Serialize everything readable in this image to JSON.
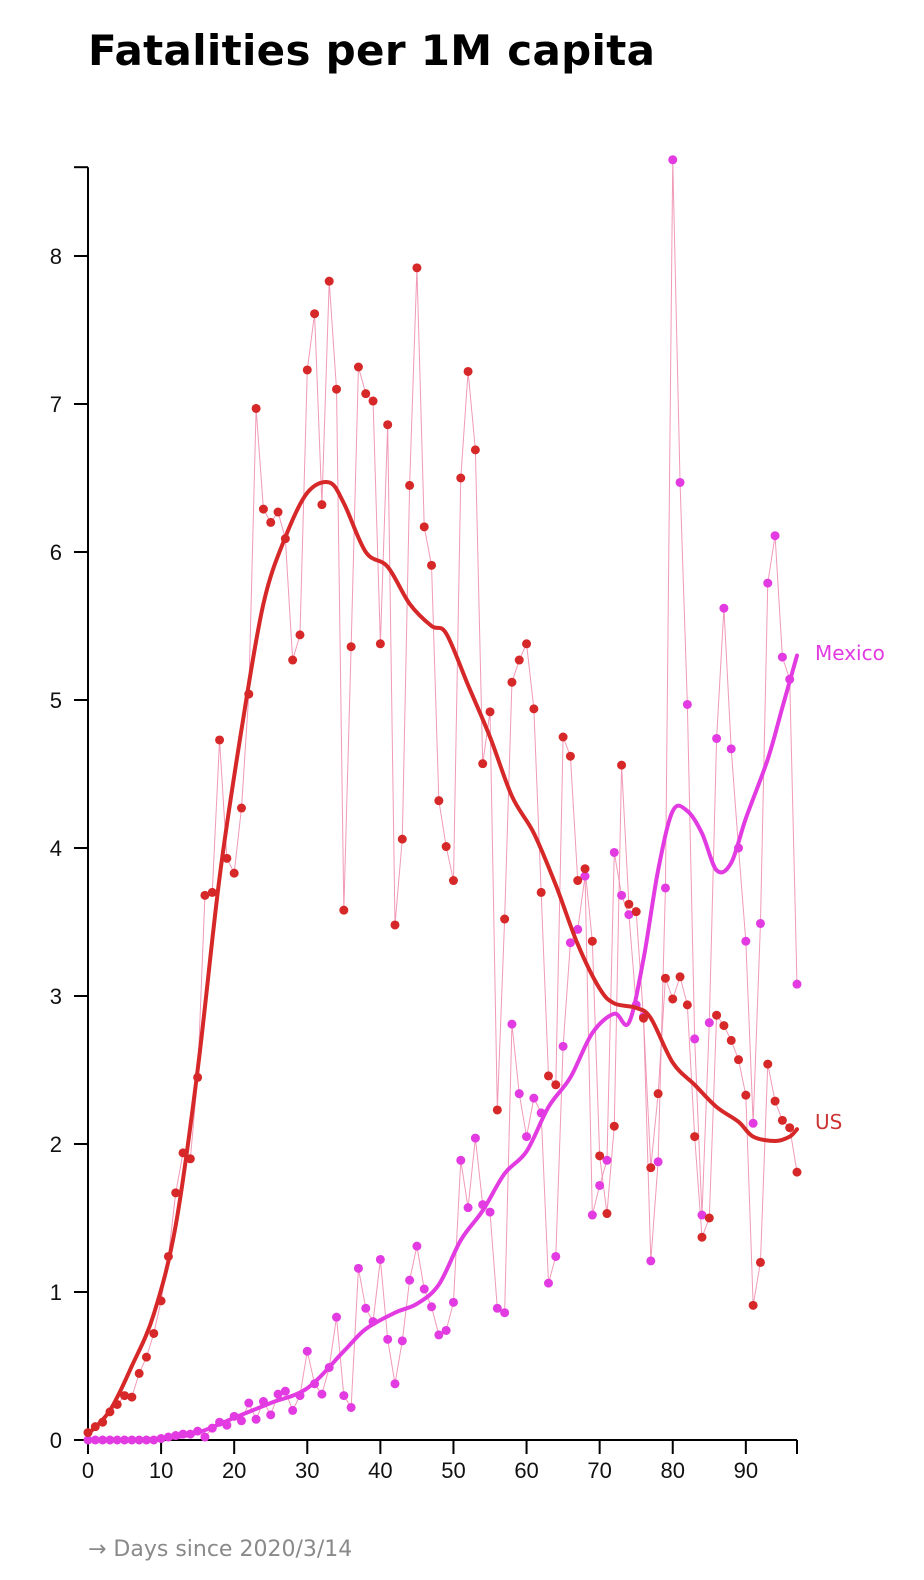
{
  "chart_data": {
    "type": "line",
    "title": "Fatalities per 1M capita",
    "xlabel": "→ Days since 2020/3/14",
    "ylabel": "",
    "xlim": [
      0,
      97
    ],
    "ylim": [
      0,
      8.6
    ],
    "x_ticks": [
      0,
      10,
      20,
      30,
      40,
      50,
      60,
      70,
      80,
      90
    ],
    "y_ticks": [
      0,
      1,
      2,
      3,
      4,
      5,
      6,
      7,
      8
    ],
    "grid": false,
    "legend": "labels at line ends (right)",
    "series": [
      {
        "name": "US",
        "color": "#d62828",
        "points": [
          0.05,
          0.09,
          0.12,
          0.19,
          0.24,
          0.3,
          0.29,
          0.45,
          0.56,
          0.72,
          0.94,
          1.24,
          1.67,
          1.94,
          1.9,
          2.45,
          3.68,
          3.7,
          4.73,
          3.93,
          3.83,
          4.27,
          5.04,
          6.97,
          6.29,
          6.2,
          6.27,
          6.09,
          5.27,
          5.44,
          7.23,
          7.61,
          6.32,
          7.83,
          7.1,
          3.58,
          5.36,
          7.25,
          7.07,
          7.02,
          5.38,
          6.86,
          3.48,
          4.06,
          6.45,
          7.92,
          6.17,
          5.91,
          4.32,
          4.01,
          3.78,
          6.5,
          7.22,
          6.69,
          4.57,
          4.92,
          2.23,
          3.52,
          5.12,
          5.27,
          5.38,
          4.94,
          3.7,
          2.46,
          2.4,
          4.75,
          4.62,
          3.78,
          3.86,
          3.37,
          1.92,
          1.53,
          2.12,
          4.56,
          3.62,
          3.57,
          2.85,
          1.84,
          2.34,
          3.12,
          2.98,
          3.13,
          2.94,
          2.05,
          1.37,
          1.5,
          2.87,
          2.8,
          2.7,
          2.57,
          2.33,
          0.91,
          1.2,
          2.54,
          2.29,
          2.16,
          2.11,
          1.81
        ],
        "smooth": [
          [
            0,
            0.04
          ],
          [
            3,
            0.2
          ],
          [
            6,
            0.5
          ],
          [
            9,
            0.85
          ],
          [
            12,
            1.45
          ],
          [
            15,
            2.5
          ],
          [
            18,
            3.8
          ],
          [
            21,
            4.8
          ],
          [
            24,
            5.65
          ],
          [
            27,
            6.1
          ],
          [
            30,
            6.4
          ],
          [
            33,
            6.47
          ],
          [
            35,
            6.33
          ],
          [
            38,
            6.0
          ],
          [
            41,
            5.9
          ],
          [
            44,
            5.65
          ],
          [
            47,
            5.5
          ],
          [
            49,
            5.45
          ],
          [
            52,
            5.1
          ],
          [
            55,
            4.75
          ],
          [
            58,
            4.35
          ],
          [
            61,
            4.1
          ],
          [
            64,
            3.75
          ],
          [
            67,
            3.35
          ],
          [
            70,
            3.05
          ],
          [
            72,
            2.95
          ],
          [
            75,
            2.92
          ],
          [
            77,
            2.85
          ],
          [
            80,
            2.55
          ],
          [
            83,
            2.4
          ],
          [
            86,
            2.25
          ],
          [
            89,
            2.15
          ],
          [
            91,
            2.05
          ],
          [
            94,
            2.02
          ],
          [
            96,
            2.05
          ],
          [
            97,
            2.1
          ]
        ]
      },
      {
        "name": "Mexico",
        "color": "#e23be2",
        "points": [
          0.0,
          0.0,
          0.0,
          0.0,
          0.0,
          0.0,
          0.0,
          0.0,
          0.0,
          0.0,
          0.01,
          0.02,
          0.03,
          0.04,
          0.04,
          0.06,
          0.02,
          0.08,
          0.12,
          0.1,
          0.16,
          0.13,
          0.25,
          0.14,
          0.26,
          0.17,
          0.31,
          0.33,
          0.2,
          0.3,
          0.6,
          0.38,
          0.31,
          0.49,
          0.83,
          0.3,
          0.22,
          1.16,
          0.89,
          0.8,
          1.22,
          0.68,
          0.38,
          0.67,
          1.08,
          1.31,
          1.02,
          0.9,
          0.71,
          0.74,
          0.93,
          1.89,
          1.57,
          2.04,
          1.59,
          1.54,
          0.89,
          0.86,
          2.81,
          2.34,
          2.05,
          2.31,
          2.21,
          1.06,
          1.24,
          2.66,
          3.36,
          3.45,
          3.81,
          1.52,
          1.72,
          1.89,
          3.97,
          3.68,
          3.55,
          2.94,
          2.86,
          1.21,
          1.88,
          3.73,
          8.65,
          6.47,
          4.97,
          2.71,
          1.52,
          2.82,
          4.74,
          5.62,
          4.67,
          4.0,
          3.37,
          2.14,
          3.49,
          5.79,
          6.11,
          5.29,
          5.14,
          3.08
        ],
        "smooth": [
          [
            0,
            0.0
          ],
          [
            10,
            0.01
          ],
          [
            15,
            0.05
          ],
          [
            20,
            0.15
          ],
          [
            25,
            0.25
          ],
          [
            30,
            0.35
          ],
          [
            35,
            0.6
          ],
          [
            38,
            0.75
          ],
          [
            42,
            0.86
          ],
          [
            45,
            0.92
          ],
          [
            48,
            1.05
          ],
          [
            51,
            1.35
          ],
          [
            54,
            1.55
          ],
          [
            57,
            1.8
          ],
          [
            60,
            1.95
          ],
          [
            63,
            2.25
          ],
          [
            66,
            2.45
          ],
          [
            69,
            2.75
          ],
          [
            72,
            2.88
          ],
          [
            74,
            2.82
          ],
          [
            76,
            3.25
          ],
          [
            78,
            3.85
          ],
          [
            80,
            4.25
          ],
          [
            82,
            4.25
          ],
          [
            84,
            4.1
          ],
          [
            86,
            3.85
          ],
          [
            88,
            3.9
          ],
          [
            90,
            4.2
          ],
          [
            93,
            4.6
          ],
          [
            95,
            4.95
          ],
          [
            97,
            5.3
          ]
        ]
      }
    ]
  }
}
